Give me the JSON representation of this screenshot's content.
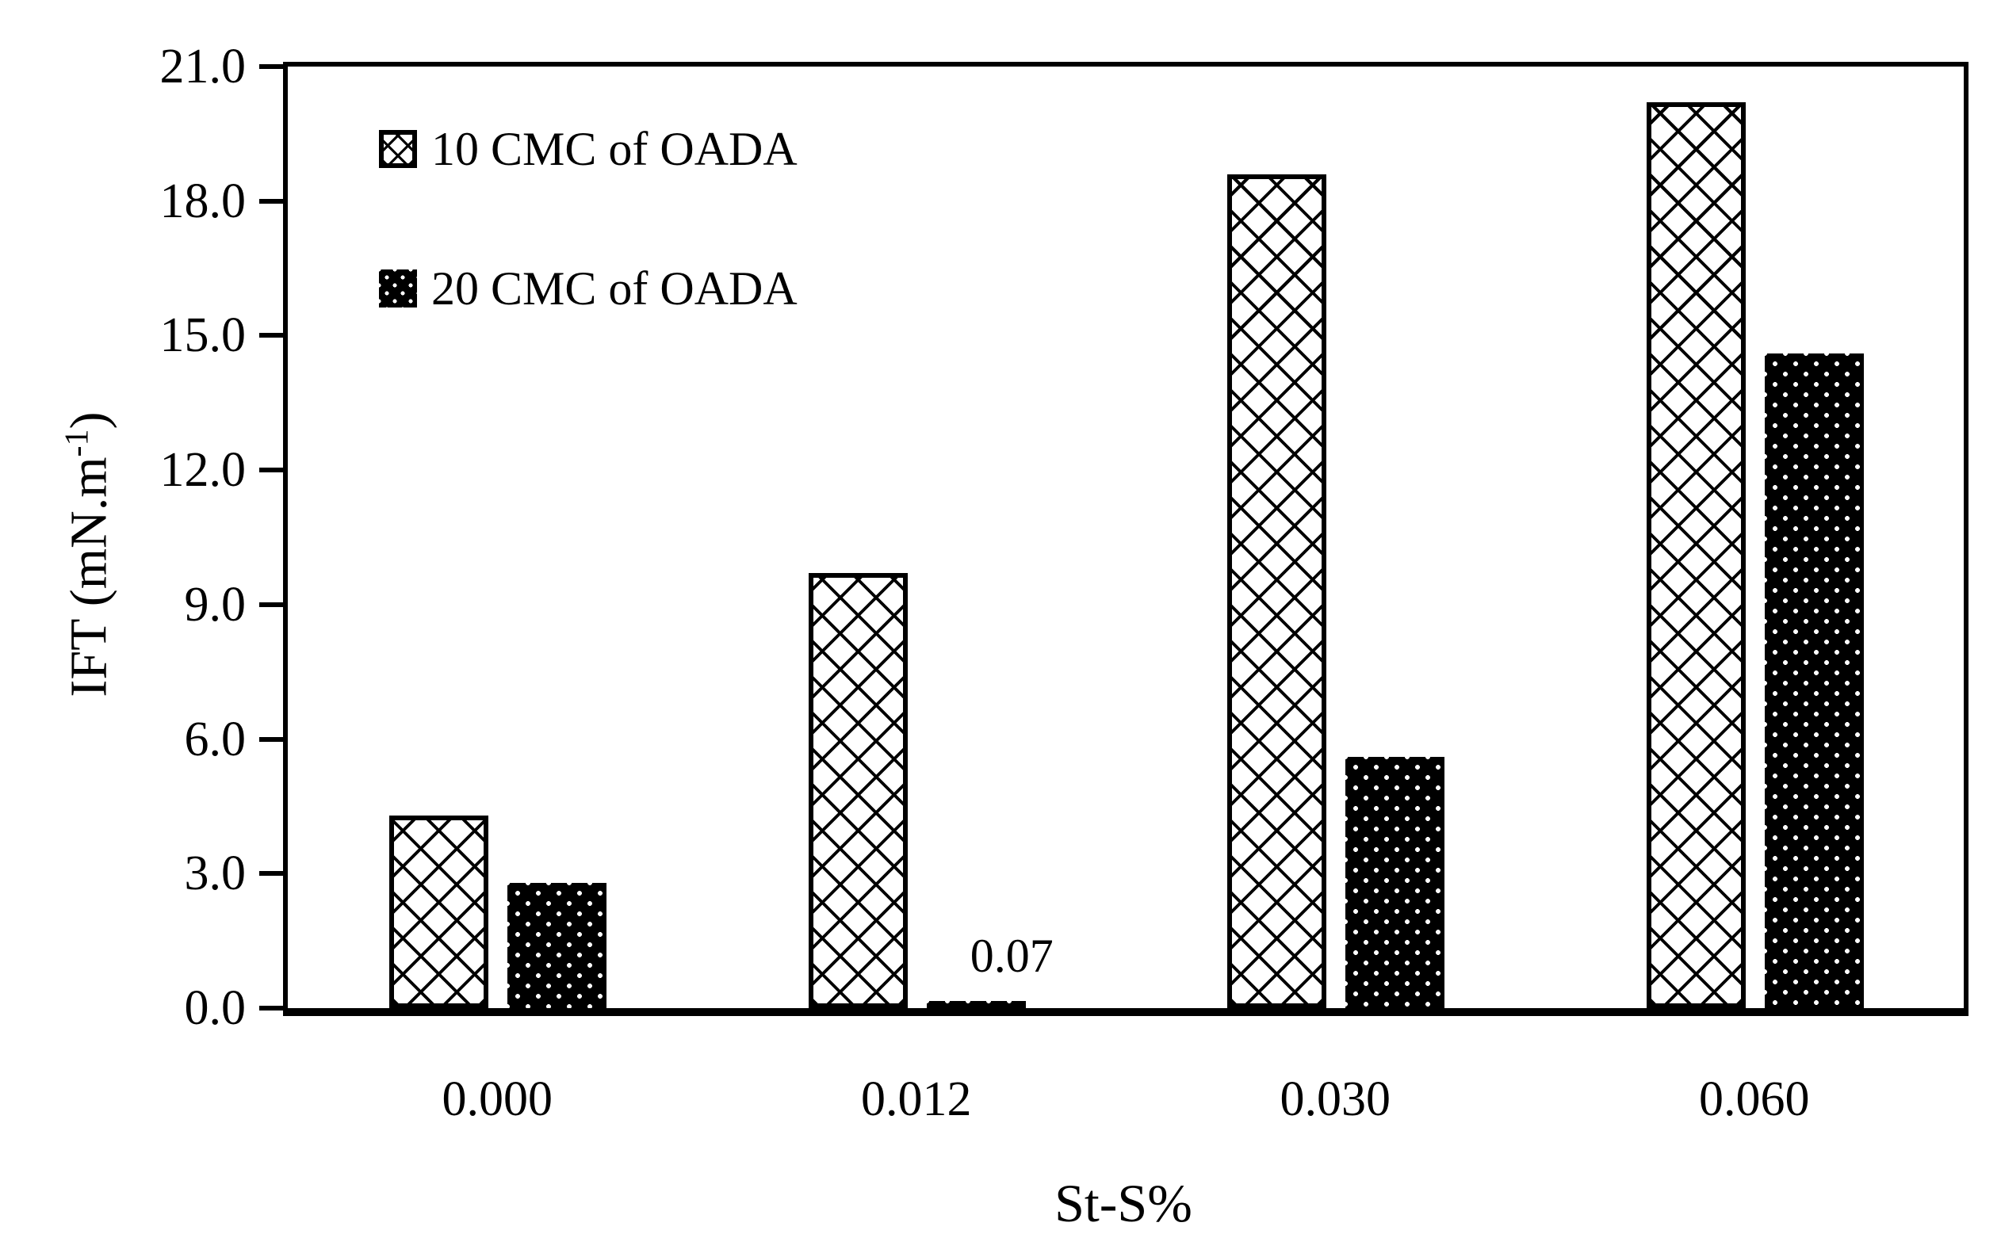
{
  "figure": {
    "background_color": "#ffffff",
    "ink_color": "#000000"
  },
  "legend": {
    "items": [
      {
        "label": "10 CMC of OADA",
        "swatch": "crosshatch-pattern"
      },
      {
        "label": "20 CMC of OADA",
        "swatch": "black-dotted-pattern"
      }
    ]
  },
  "chart_data": {
    "type": "bar",
    "title": "",
    "xlabel": "St-S%",
    "ylabel": "IFT (mN.m-1)",
    "ylabel_parts": {
      "main": "IFT (mN.m",
      "sup": "-1",
      "close": ")"
    },
    "categories": [
      "0.000",
      "0.012",
      "0.030",
      "0.060"
    ],
    "series": [
      {
        "name": "10 CMC of OADA",
        "pattern": "crosshatch",
        "values": [
          4.3,
          9.7,
          18.6,
          20.2
        ]
      },
      {
        "name": "20 CMC of OADA",
        "pattern": "black-dotted",
        "values": [
          2.8,
          0.07,
          5.6,
          14.6
        ]
      }
    ],
    "annotations": [
      {
        "text": "0.07",
        "series": 1,
        "category_index": 1
      }
    ],
    "ylim": [
      0,
      21
    ],
    "yticks": [
      "21.0",
      "18.0",
      "15.0",
      "12.0",
      "9.0",
      "6.0",
      "3.0",
      "0.0"
    ],
    "ytick_values": [
      21,
      18,
      15,
      12,
      9,
      6,
      3,
      0
    ],
    "grid": false,
    "legend_position": "top-left-inside",
    "bar_outline": "black"
  }
}
